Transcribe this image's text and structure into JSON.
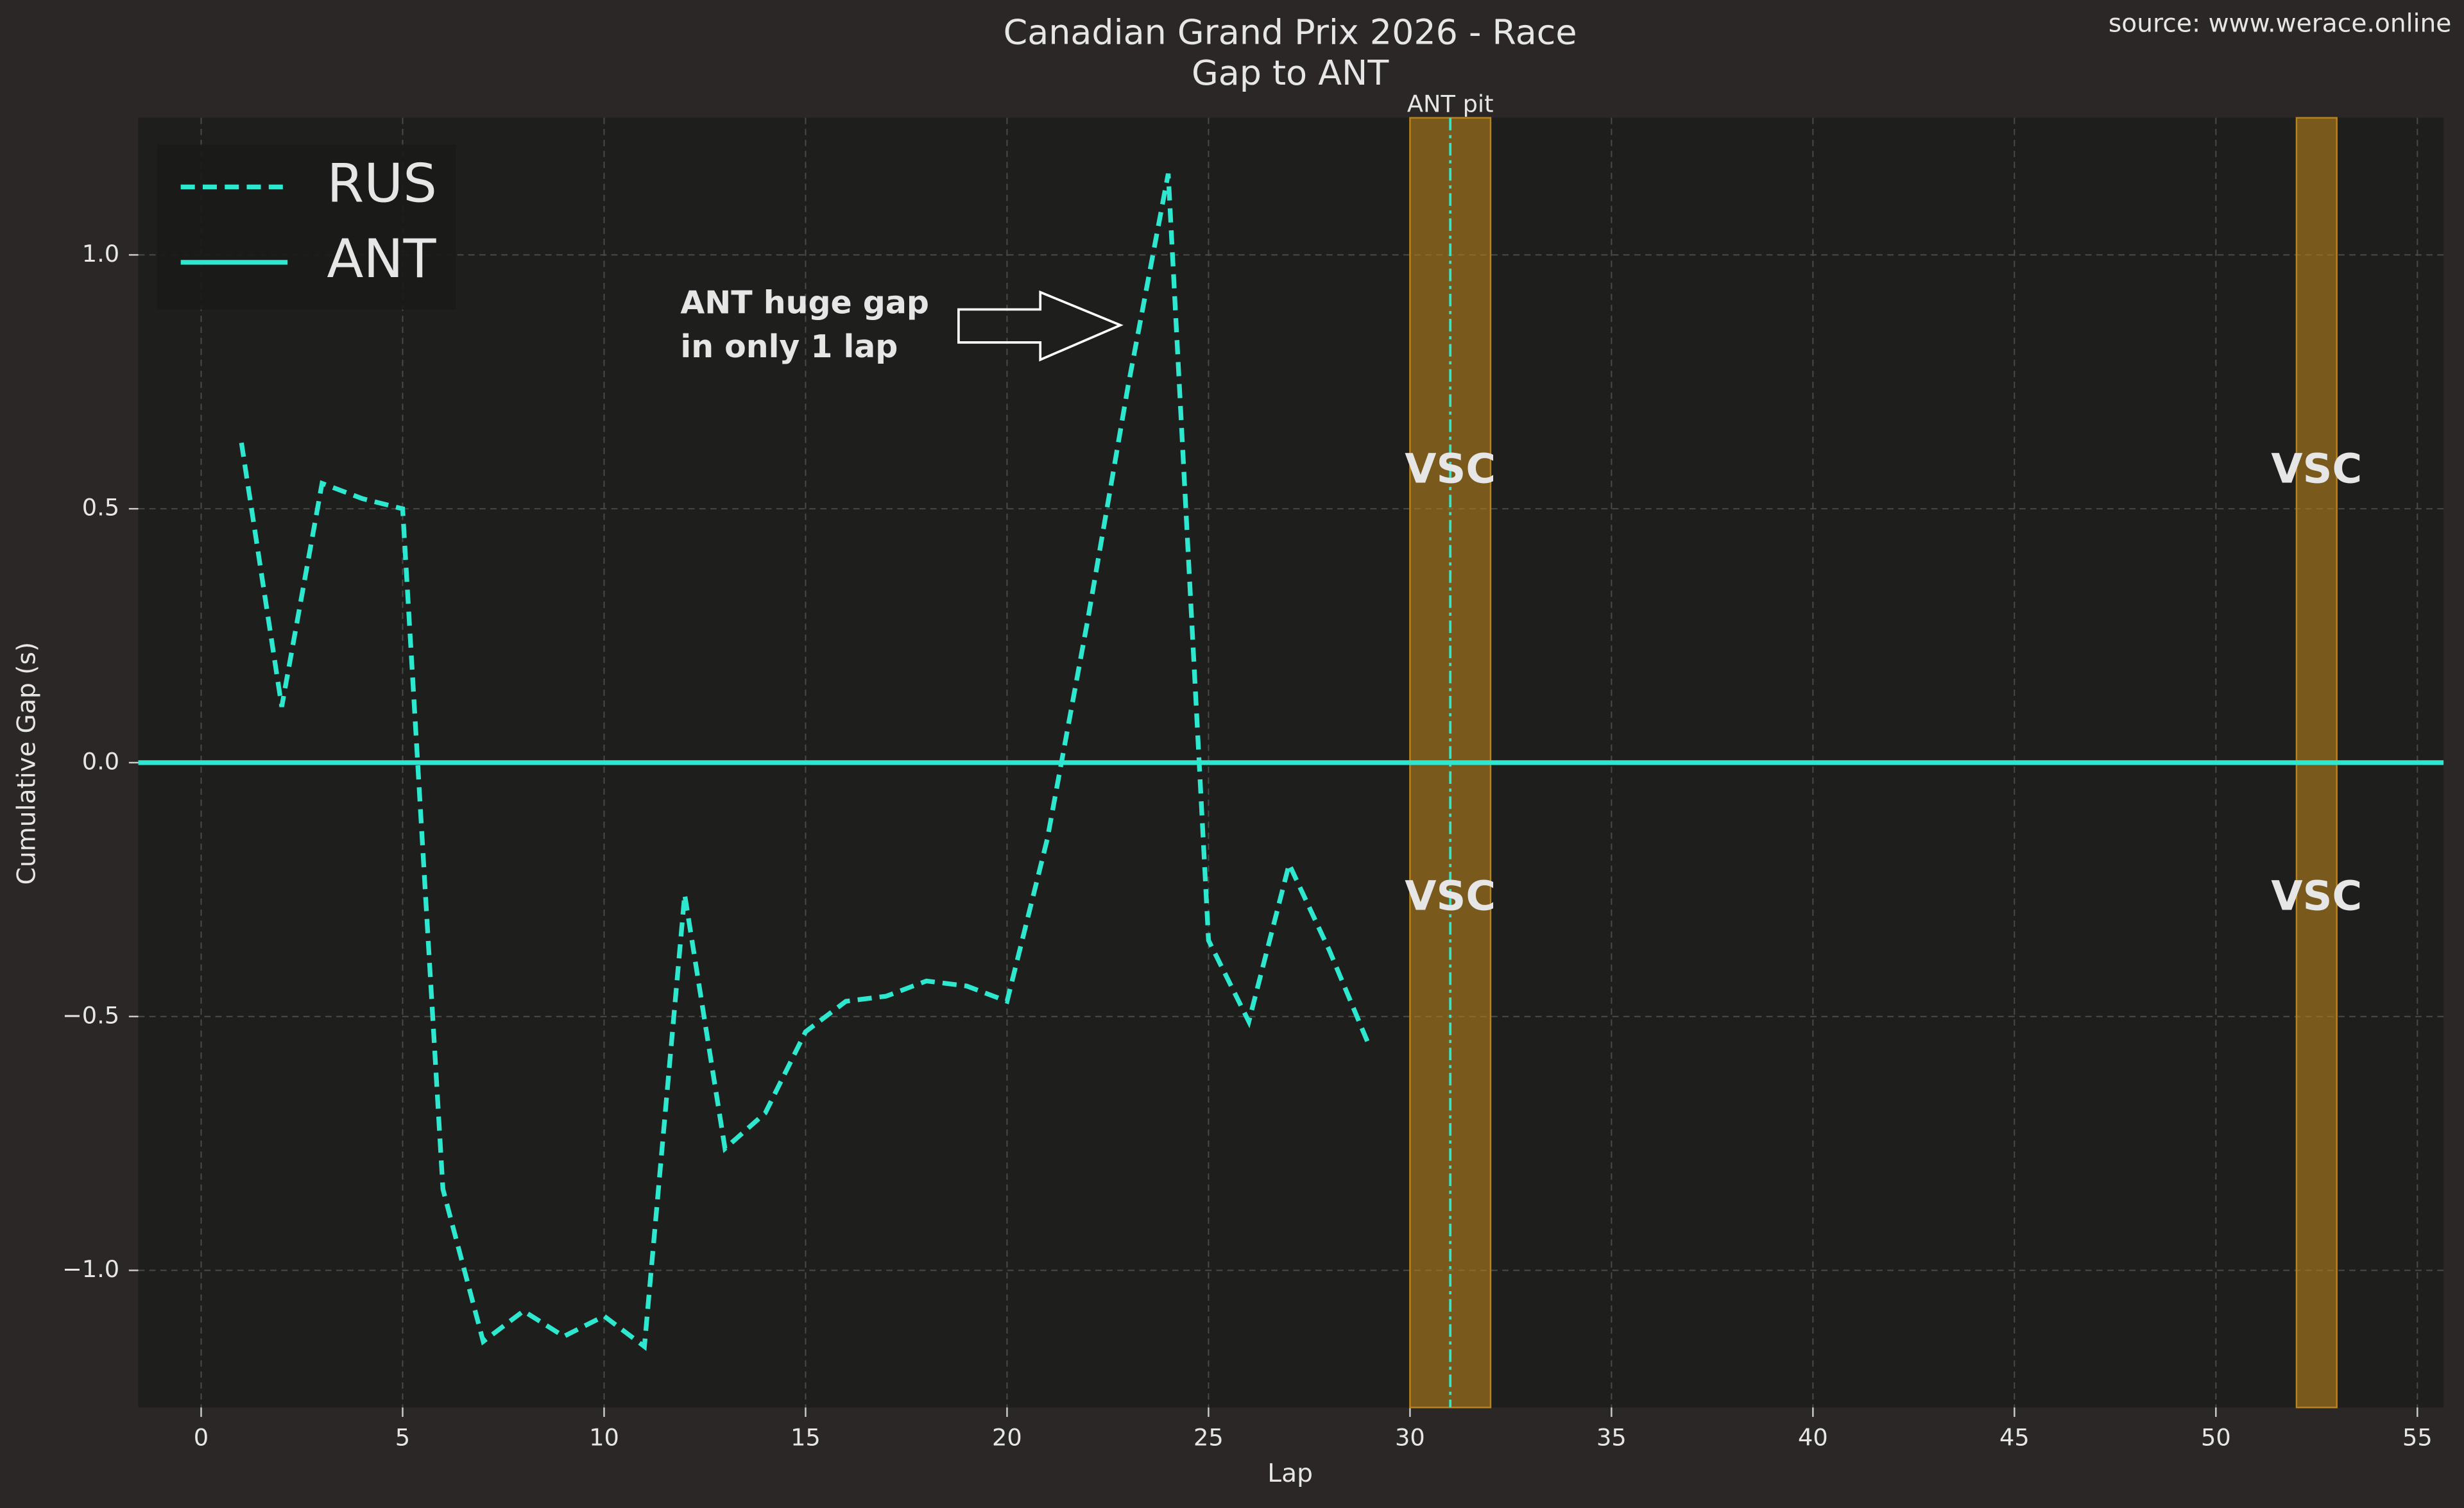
{
  "chart_data": {
    "type": "line",
    "title": "Canadian Grand Prix 2026 - Race",
    "subtitle": "Gap to ANT",
    "source": "source: www.werace.online",
    "xlabel": "Lap",
    "ylabel": "Cumulative Gap (s)",
    "x": [
      1,
      2,
      3,
      4,
      5,
      6,
      7,
      8,
      9,
      10,
      11,
      12,
      13,
      14,
      15,
      16,
      17,
      18,
      19,
      20,
      21,
      22,
      23,
      24,
      25,
      26,
      27,
      28,
      29
    ],
    "series": [
      {
        "name": "RUS",
        "color": "#2de8cf",
        "dashed": true,
        "values": [
          0.63,
          0.11,
          0.55,
          0.52,
          0.5,
          -0.84,
          -1.14,
          -1.08,
          -1.13,
          -1.09,
          -1.15,
          -0.26,
          -0.76,
          -0.69,
          -0.53,
          -0.47,
          -0.46,
          -0.43,
          -0.44,
          -0.47,
          -0.15,
          0.28,
          0.74,
          1.16,
          -0.35,
          -0.51,
          -0.2,
          -0.37,
          -0.56
        ]
      },
      {
        "name": "ANT",
        "color": "#2de8cf",
        "dashed": false,
        "hline": 0
      }
    ],
    "xlim": [
      -1.56,
      55.65
    ],
    "ylim": [
      -1.27,
      1.27
    ],
    "xticks": [
      0,
      5,
      10,
      15,
      20,
      25,
      30,
      35,
      40,
      45,
      50,
      55
    ],
    "yticks": [
      {
        "value": -1,
        "label": "−1.0"
      },
      {
        "value": -0.5,
        "label": "−0.5"
      },
      {
        "value": 0,
        "label": "0.0"
      },
      0.5,
      {
        "value": 1,
        "label": "1.0"
      }
    ],
    "grid": true,
    "legend": "upper left",
    "vsc_periods": [
      {
        "start": 30,
        "end": 32,
        "label": "VSC",
        "color": "#b8821c"
      },
      {
        "start": 52,
        "end": 53,
        "label": "VSC",
        "color": "#b8821c"
      }
    ],
    "pit": {
      "lap": 31,
      "label": "ANT pit",
      "color": "#2de8cf"
    },
    "annotation": [
      "ANT huge gap",
      "in only 1 lap"
    ]
  }
}
